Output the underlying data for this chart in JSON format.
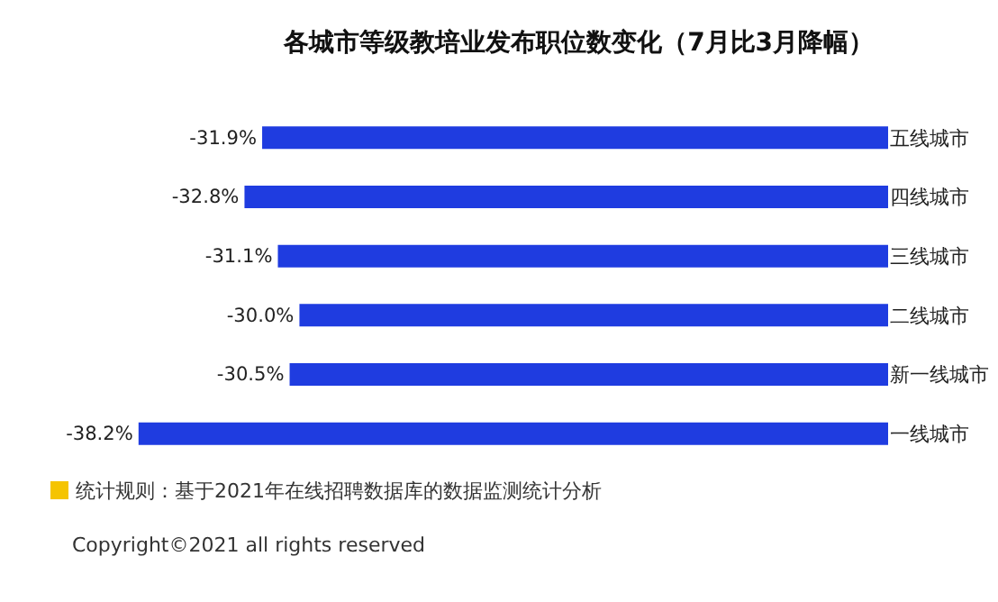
{
  "chart_data": {
    "type": "bar",
    "orientation": "horizontal",
    "title": "各城市等级教培业发布职位数变化（7月比3月降幅）",
    "categories": [
      "五线城市",
      "四线城市",
      "三线城市",
      "二线城市",
      "新一线城市",
      "一线城市"
    ],
    "values": [
      -31.9,
      -32.8,
      -31.1,
      -30.0,
      -30.5,
      -38.2
    ],
    "value_labels": [
      "-31.9%",
      "-32.8%",
      "-31.1%",
      "-30.0%",
      "-30.5%",
      "-38.2%"
    ],
    "color": "#1f3ce0",
    "grid": false,
    "legend": false,
    "annotations": [
      "统计规则：基于2021年在线招聘数据库的数据监测统计分析",
      "Copyright©2021 all rights reserved"
    ]
  }
}
